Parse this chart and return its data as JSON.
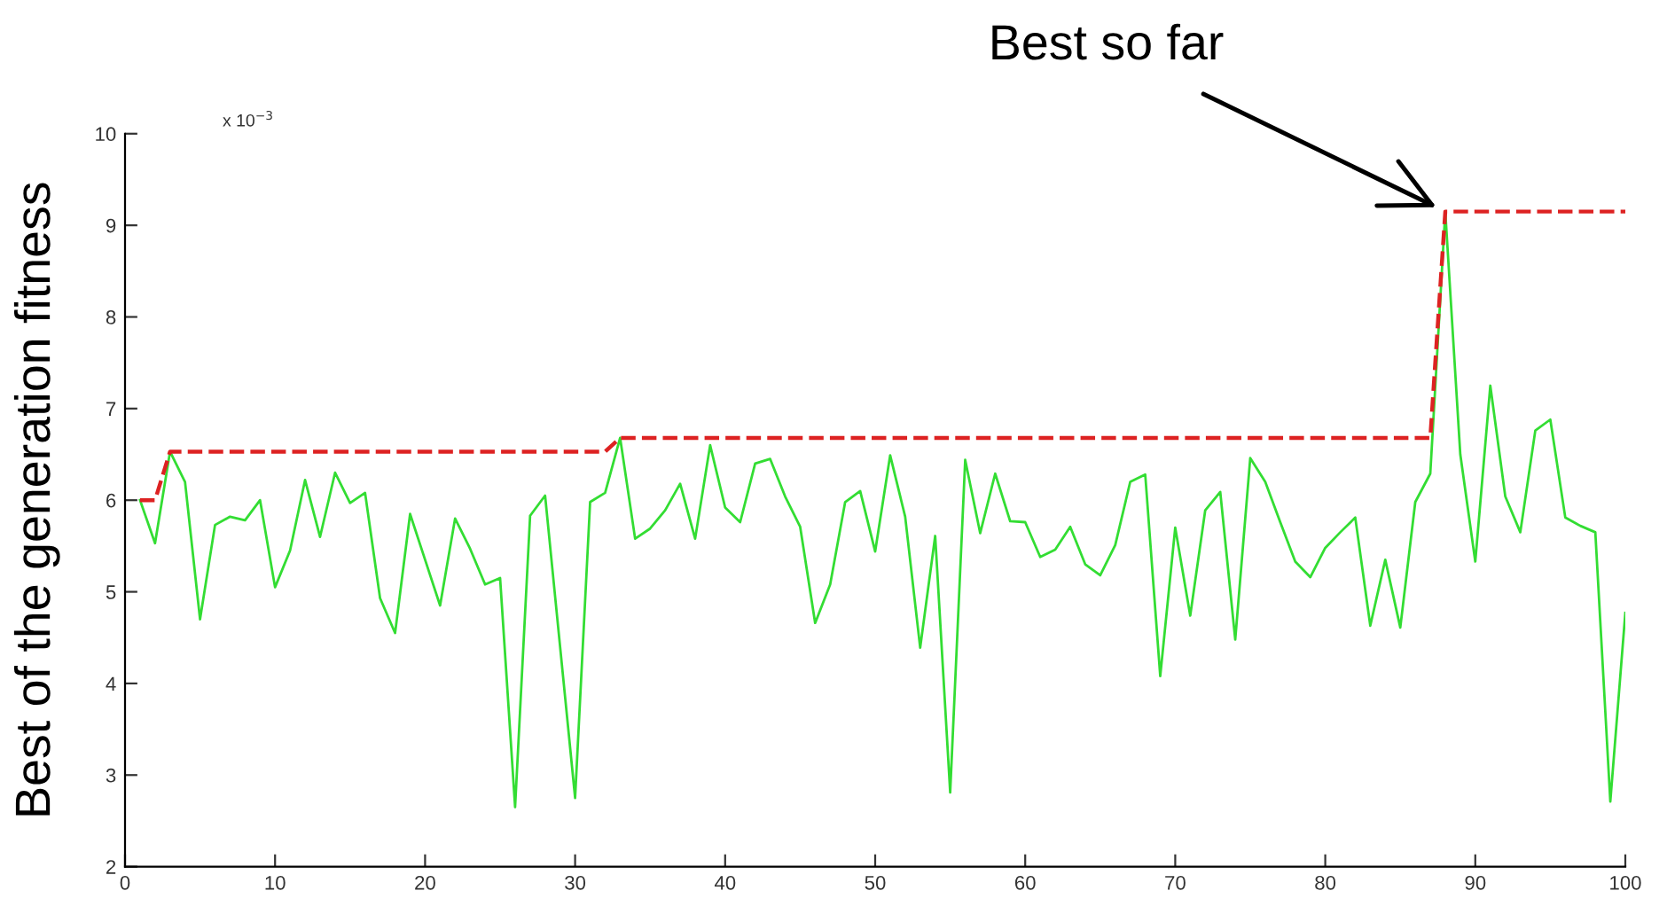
{
  "chart_data": {
    "type": "line",
    "ylabel": "Best of the generation fitness",
    "annotations": [
      {
        "text": "Best so far",
        "x": 88,
        "y": 9.15
      },
      "x 10$^{−3}$"
    ],
    "xlim": [
      0,
      100
    ],
    "xticks": [
      0,
      10,
      20,
      30,
      40,
      50,
      60,
      70,
      80,
      90,
      100
    ],
    "ylim": [
      2,
      10
    ],
    "yticks": [
      2,
      3,
      4,
      5,
      6,
      7,
      8,
      9,
      10
    ],
    "grid": false,
    "series": [
      {
        "color": "#33dd33",
        "line_style": "solid",
        "x": [
          1,
          2,
          3,
          4,
          5,
          6,
          7,
          8,
          9,
          10,
          11,
          12,
          13,
          14,
          15,
          16,
          17,
          18,
          19,
          20,
          21,
          22,
          23,
          24,
          25,
          26,
          27,
          28,
          29,
          30,
          31,
          32,
          33,
          34,
          35,
          36,
          37,
          38,
          39,
          40,
          41,
          42,
          43,
          44,
          45,
          46,
          47,
          48,
          49,
          50,
          51,
          52,
          53,
          54,
          55,
          56,
          57,
          58,
          59,
          60,
          61,
          62,
          63,
          64,
          65,
          66,
          67,
          68,
          69,
          70,
          71,
          72,
          73,
          74,
          75,
          76,
          77,
          78,
          79,
          80,
          81,
          82,
          83,
          84,
          85,
          86,
          87,
          88,
          89,
          90,
          91,
          92,
          93,
          94,
          95,
          96,
          97,
          98,
          99,
          100
        ],
        "values": [
          6.0,
          5.53,
          6.53,
          6.2,
          4.7,
          5.73,
          5.82,
          5.78,
          6.0,
          5.05,
          5.45,
          6.22,
          5.6,
          6.3,
          5.97,
          6.08,
          4.93,
          4.55,
          5.85,
          5.35,
          4.85,
          5.8,
          5.47,
          5.08,
          5.15,
          2.65,
          5.83,
          6.05,
          4.4,
          2.75,
          5.98,
          6.08,
          6.68,
          5.58,
          5.69,
          5.89,
          6.18,
          5.58,
          6.6,
          5.92,
          5.76,
          6.4,
          6.45,
          6.04,
          5.71,
          4.66,
          5.08,
          5.98,
          6.1,
          5.44,
          6.49,
          5.82,
          4.39,
          5.61,
          2.81,
          6.44,
          5.64,
          6.29,
          5.77,
          5.76,
          5.38,
          5.46,
          5.71,
          5.3,
          5.18,
          5.51,
          6.2,
          6.28,
          4.08,
          5.7,
          4.74,
          5.89,
          6.09,
          4.48,
          6.46,
          6.2,
          5.76,
          5.33,
          5.16,
          5.48,
          5.65,
          5.81,
          4.63,
          5.35,
          4.61,
          5.98,
          6.29,
          9.15,
          6.5,
          5.33,
          7.25,
          6.04,
          5.65,
          6.76,
          6.88,
          5.81,
          5.72,
          5.65,
          2.71,
          4.77
        ]
      },
      {
        "color": "#dd2222",
        "line_style": "dashed",
        "x": [
          1,
          2,
          3,
          32,
          33,
          87,
          88,
          100
        ],
        "values": [
          6.0,
          6.0,
          6.53,
          6.53,
          6.68,
          6.68,
          9.15,
          9.15
        ]
      }
    ]
  }
}
